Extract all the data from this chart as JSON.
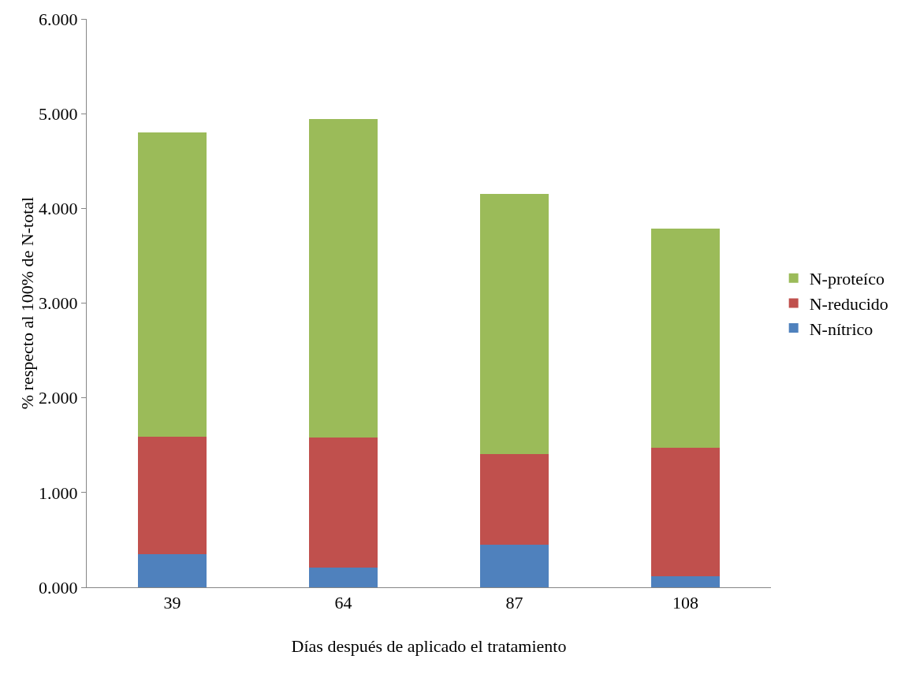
{
  "chart_data": {
    "type": "bar",
    "stacked": true,
    "xlabel": "Días después de aplicado el tratamiento",
    "ylabel": "% respecto al 100% de N-total",
    "categories": [
      "39",
      "64",
      "87",
      "108"
    ],
    "series": [
      {
        "name": "N-nítrico",
        "color": "#4f81bd",
        "values": [
          0.35,
          0.21,
          0.45,
          0.12
        ]
      },
      {
        "name": "N-reducido",
        "color": "#c0504d",
        "values": [
          1.24,
          1.37,
          0.96,
          1.35
        ]
      },
      {
        "name": "N-proteíco",
        "color": "#9bbb59",
        "values": [
          3.21,
          3.36,
          2.74,
          2.32
        ]
      }
    ],
    "ylim": [
      0,
      6
    ],
    "yticks": [
      {
        "value": 0,
        "label": "0.000"
      },
      {
        "value": 1,
        "label": "1.000"
      },
      {
        "value": 2,
        "label": "2.000"
      },
      {
        "value": 3,
        "label": "3.000"
      },
      {
        "value": 4,
        "label": "4.000"
      },
      {
        "value": 5,
        "label": "5.000"
      },
      {
        "value": 6,
        "label": "6.000"
      }
    ],
    "grid": false,
    "legend": "right"
  }
}
